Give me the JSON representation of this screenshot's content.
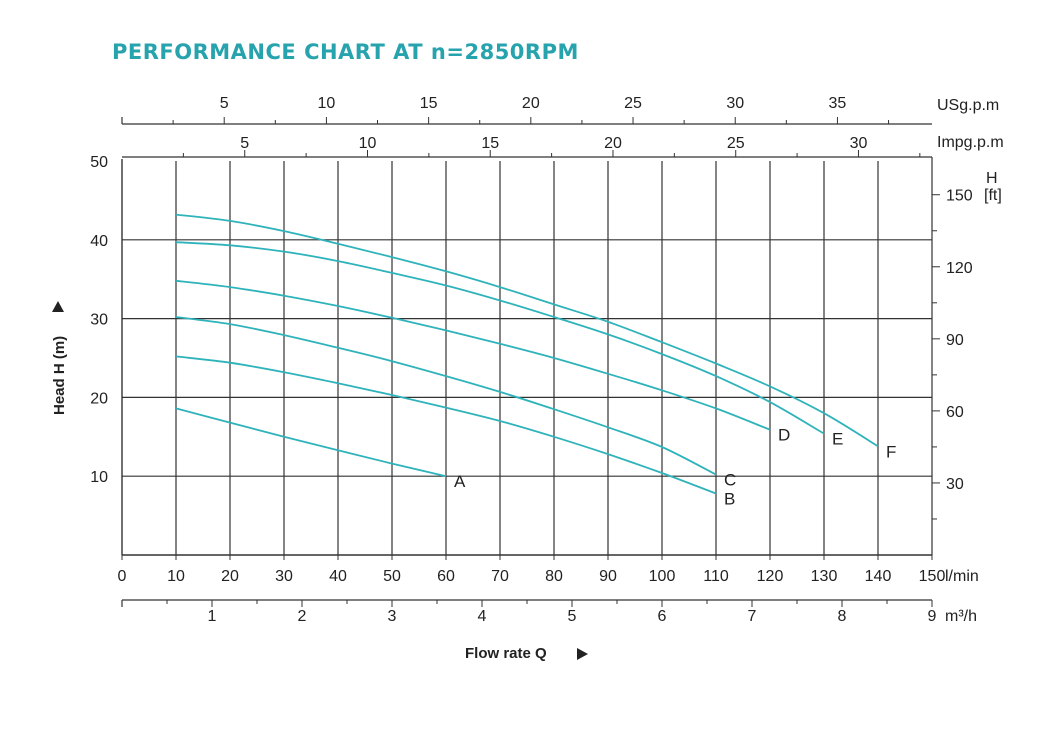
{
  "title": "PERFORMANCE CHART AT n=2850RPM",
  "colors": {
    "title": "#27a3ad",
    "curve": "#2fb3bb",
    "grid": "#333333",
    "text": "#222222"
  },
  "chart_data": {
    "type": "line",
    "title": "PERFORMANCE CHART AT n=2850RPM",
    "xlabel": "Flow rate Q",
    "ylabel": "Head H (m)",
    "x_unit": "l/min",
    "xlim": [
      0,
      150
    ],
    "ylim": [
      0,
      50
    ],
    "x_ticks": [
      0,
      10,
      20,
      30,
      40,
      50,
      60,
      70,
      80,
      90,
      100,
      110,
      120,
      130,
      140,
      150
    ],
    "y_ticks": [
      10,
      20,
      30,
      40,
      50
    ],
    "grid": true,
    "secondary_axes": {
      "m3h": {
        "unit": "m³/h",
        "ticks": [
          1,
          2,
          3,
          4,
          5,
          6,
          7,
          8,
          9
        ]
      },
      "usgpm": {
        "unit": "USg.p.m",
        "ticks": [
          5,
          10,
          15,
          20,
          25,
          30,
          35
        ]
      },
      "impgpm": {
        "unit": "Impg.p.m",
        "ticks": [
          5,
          10,
          15,
          20,
          25,
          30
        ]
      },
      "head_ft": {
        "unit_line1": "H",
        "unit_line2": "[ft]",
        "ticks": [
          30,
          60,
          90,
          120,
          150
        ]
      }
    },
    "series": [
      {
        "name": "A",
        "x": [
          10,
          20,
          30,
          40,
          50,
          60
        ],
        "y": [
          18.6,
          16.8,
          15.0,
          13.3,
          11.6,
          10.0
        ]
      },
      {
        "name": "B",
        "x": [
          10,
          20,
          30,
          40,
          50,
          60,
          70,
          80,
          90,
          100,
          110
        ],
        "y": [
          25.2,
          24.4,
          23.2,
          21.8,
          20.3,
          18.7,
          17.0,
          15.0,
          12.8,
          10.4,
          7.8
        ]
      },
      {
        "name": "C",
        "x": [
          10,
          20,
          30,
          40,
          50,
          60,
          70,
          80,
          90,
          100,
          110
        ],
        "y": [
          30.2,
          29.3,
          27.9,
          26.3,
          24.6,
          22.7,
          20.7,
          18.5,
          16.2,
          13.7,
          10.2
        ]
      },
      {
        "name": "D",
        "x": [
          10,
          20,
          30,
          40,
          50,
          60,
          70,
          80,
          90,
          100,
          110,
          120
        ],
        "y": [
          34.8,
          34.0,
          32.9,
          31.6,
          30.1,
          28.5,
          26.8,
          25.0,
          23.0,
          20.9,
          18.6,
          15.9
        ]
      },
      {
        "name": "E",
        "x": [
          10,
          20,
          30,
          40,
          50,
          60,
          70,
          80,
          90,
          100,
          110,
          120,
          130
        ],
        "y": [
          39.7,
          39.3,
          38.5,
          37.3,
          35.8,
          34.2,
          32.3,
          30.2,
          28.0,
          25.5,
          22.7,
          19.4,
          15.4
        ]
      },
      {
        "name": "F",
        "x": [
          10,
          20,
          30,
          40,
          50,
          60,
          70,
          80,
          90,
          100,
          110,
          120,
          130,
          140
        ],
        "y": [
          43.2,
          42.4,
          41.1,
          39.5,
          37.8,
          36.0,
          34.0,
          31.8,
          29.6,
          27.0,
          24.3,
          21.4,
          18.0,
          13.8
        ]
      }
    ]
  }
}
